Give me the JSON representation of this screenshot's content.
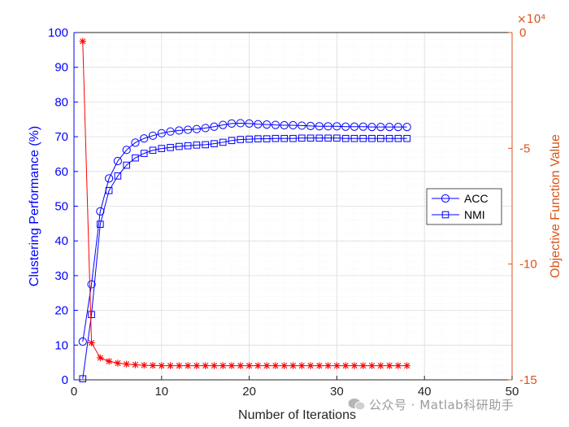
{
  "chart_data": {
    "type": "line",
    "xlabel": "Number of Iterations",
    "ylabel_left": "Clustering Performance (%)",
    "ylabel_right": "Objective Function Value",
    "right_axis_multiplier": "×10⁴",
    "xlim": [
      0,
      50
    ],
    "ylim_left": [
      0,
      100
    ],
    "ylim_right": [
      -150000,
      0
    ],
    "x_ticks": [
      0,
      10,
      20,
      30,
      40,
      50
    ],
    "y_ticks_left": [
      0,
      10,
      20,
      30,
      40,
      50,
      60,
      70,
      80,
      90,
      100
    ],
    "y_ticks_right": [
      0,
      -5,
      -10,
      -15
    ],
    "grid": true,
    "minor_grid": true,
    "legend_position": "center-right",
    "colors": {
      "left_axis": "#0000ff",
      "right_axis": "#d95319",
      "objective": "#ff0000",
      "axis": "#262626"
    },
    "x": [
      1,
      2,
      3,
      4,
      5,
      6,
      7,
      8,
      9,
      10,
      11,
      12,
      13,
      14,
      15,
      16,
      17,
      18,
      19,
      20,
      21,
      22,
      23,
      24,
      25,
      26,
      27,
      28,
      29,
      30,
      31,
      32,
      33,
      34,
      35,
      36,
      37,
      38
    ],
    "series": [
      {
        "name": "ACC",
        "axis": "left",
        "marker": "circle",
        "values": [
          11.0,
          27.5,
          48.5,
          58.0,
          63.0,
          66.2,
          68.3,
          69.5,
          70.3,
          71.0,
          71.5,
          71.8,
          72.0,
          72.2,
          72.5,
          72.9,
          73.4,
          73.8,
          73.9,
          73.8,
          73.6,
          73.5,
          73.4,
          73.3,
          73.3,
          73.2,
          73.1,
          73.0,
          73.0,
          73.0,
          72.9,
          72.9,
          72.9,
          72.8,
          72.8,
          72.8,
          72.8,
          72.8
        ]
      },
      {
        "name": "NMI",
        "axis": "left",
        "marker": "square",
        "values": [
          0.3,
          18.8,
          44.8,
          54.5,
          58.7,
          61.8,
          63.9,
          65.2,
          66.1,
          66.6,
          66.9,
          67.2,
          67.4,
          67.6,
          67.7,
          68.0,
          68.4,
          68.9,
          69.2,
          69.3,
          69.4,
          69.4,
          69.5,
          69.5,
          69.5,
          69.6,
          69.6,
          69.6,
          69.6,
          69.6,
          69.5,
          69.5,
          69.5,
          69.5,
          69.5,
          69.5,
          69.5,
          69.5
        ]
      },
      {
        "axis": "right",
        "marker": "star",
        "values": [
          -3800,
          -134000,
          -140500,
          -142000,
          -142800,
          -143200,
          -143500,
          -143700,
          -143800,
          -143900,
          -143900,
          -143900,
          -143900,
          -143900,
          -143900,
          -143900,
          -143900,
          -143900,
          -143900,
          -143900,
          -143900,
          -143900,
          -143900,
          -143900,
          -143900,
          -143900,
          -143900,
          -143900,
          -143900,
          -143900,
          -143900,
          -143900,
          -143900,
          -143900,
          -143900,
          -143900,
          -143900,
          -143900
        ]
      }
    ]
  },
  "watermark": {
    "text": "公众号 · Matlab科研助手"
  }
}
